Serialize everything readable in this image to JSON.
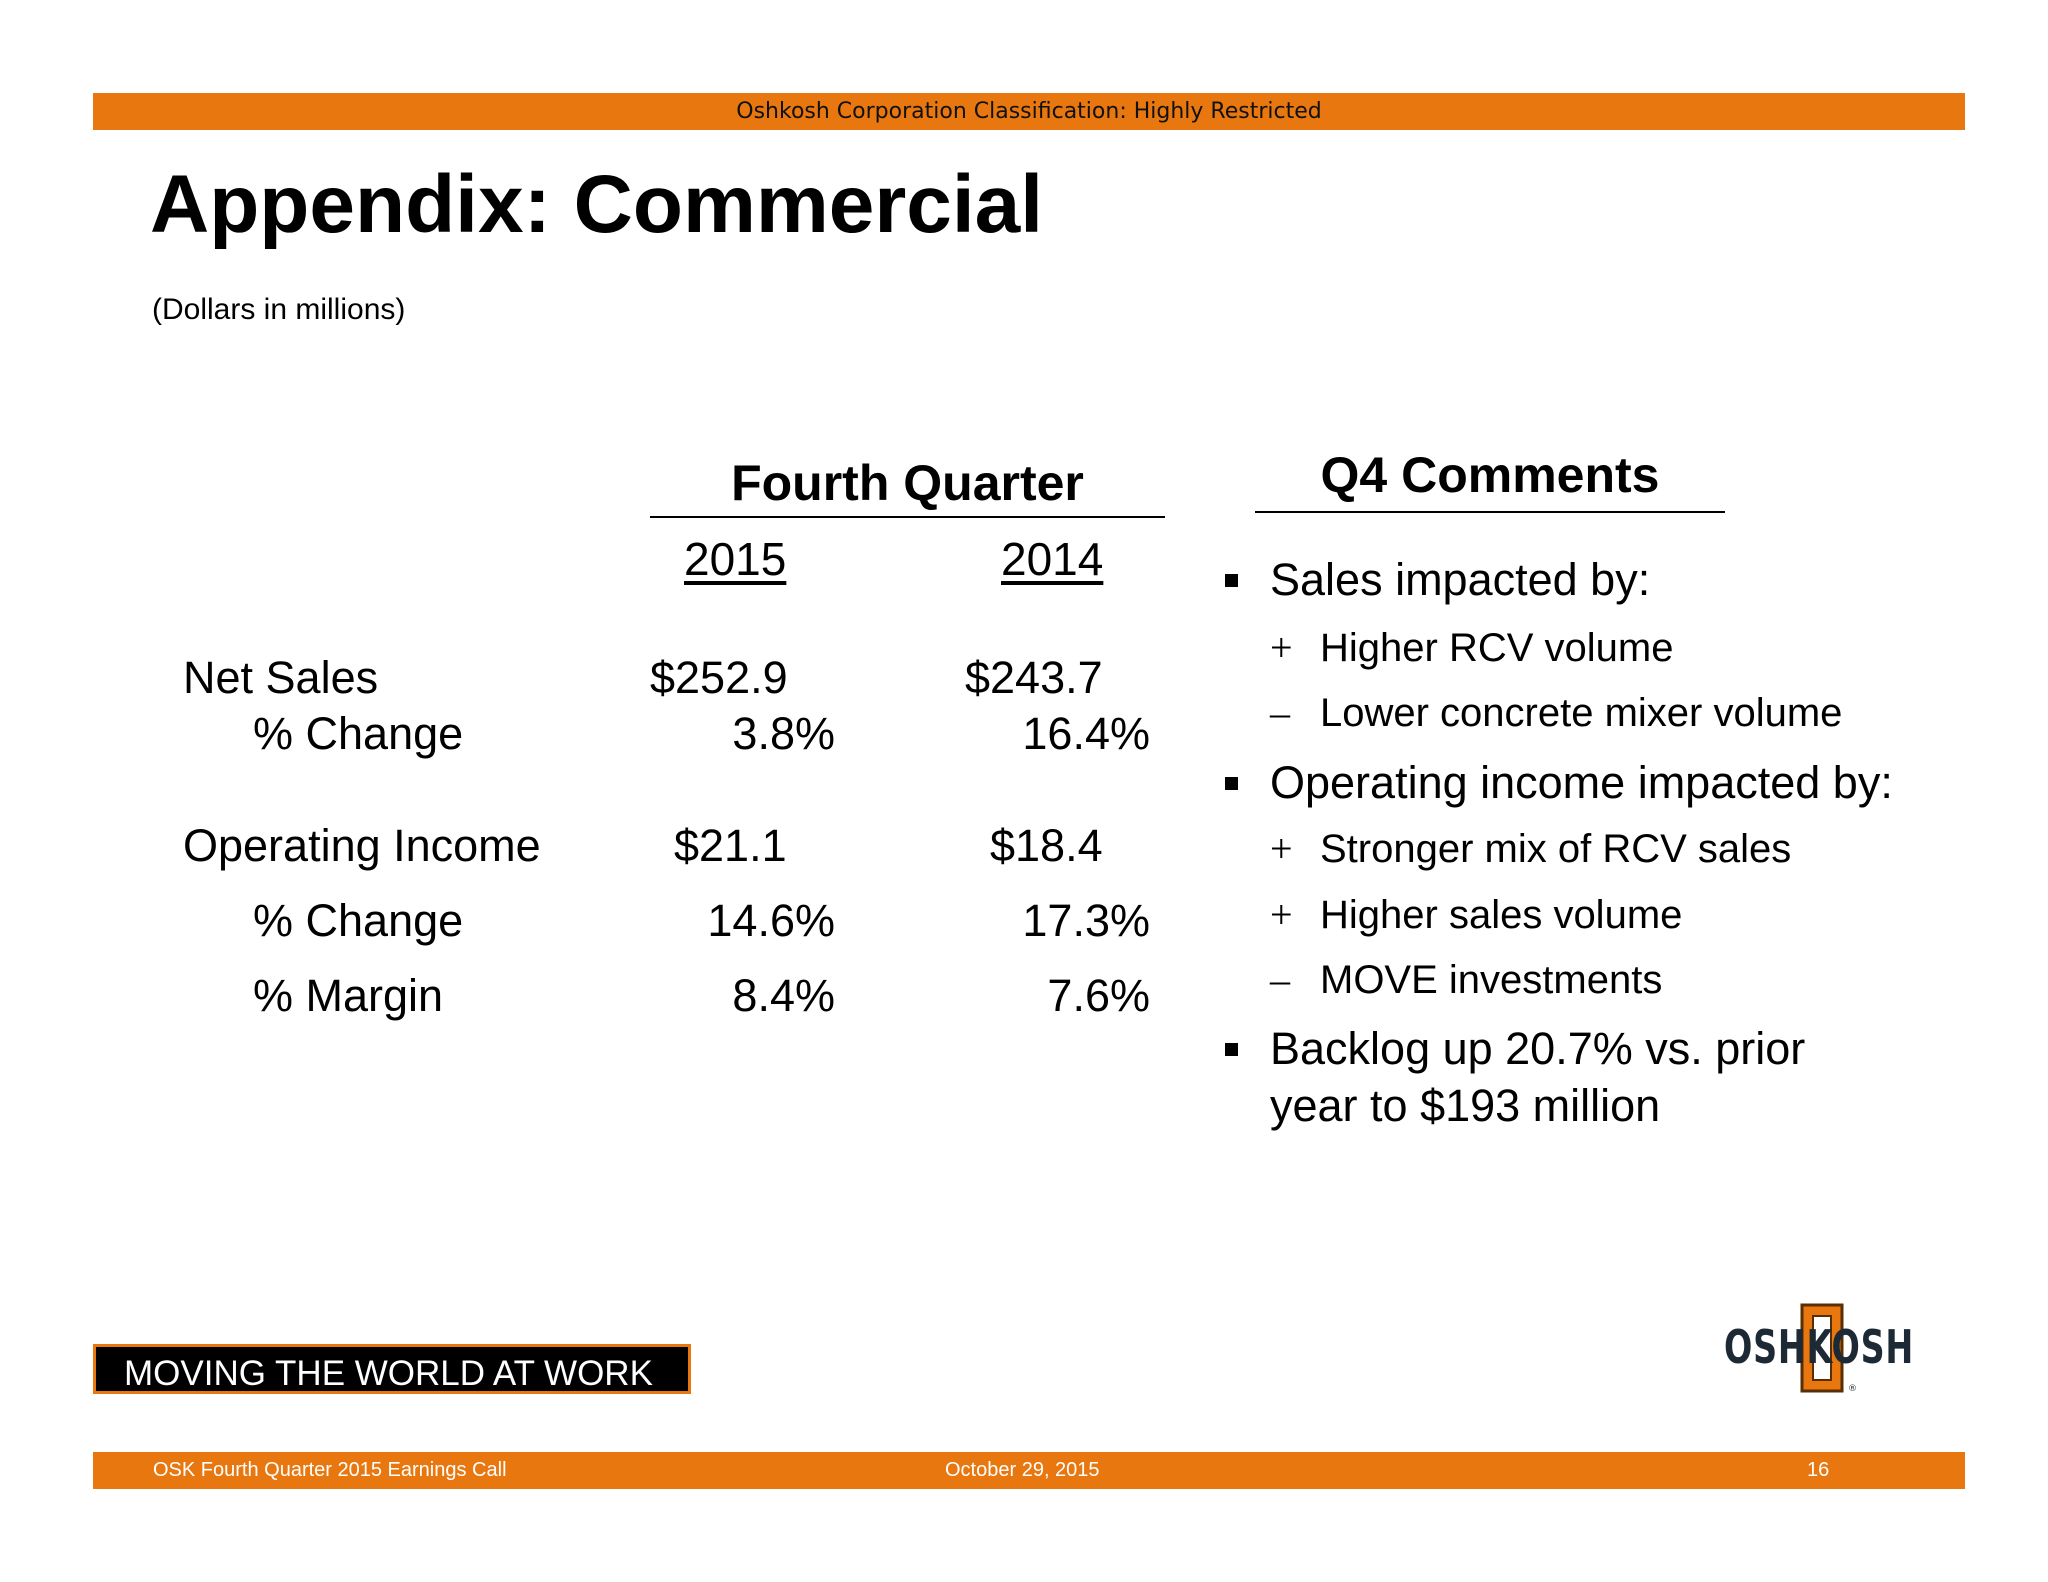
{
  "header": {
    "classification": "Oshkosh Corporation Classification: Highly Restricted"
  },
  "title": "Appendix: Commercial",
  "subtitle": "(Dollars in millions)",
  "table": {
    "heading": "Fourth Quarter",
    "years": [
      "2015",
      "2014"
    ],
    "rows": [
      {
        "label": "Net Sales",
        "v2015": "$252.9",
        "v2014": "$243.7"
      },
      {
        "label": "% Change",
        "v2015": "3.8%",
        "v2014": "16.4%"
      },
      {
        "label": "Operating Income",
        "v2015": "$21.1",
        "v2014": "$18.4"
      },
      {
        "label": "% Change",
        "v2015": "14.6%",
        "v2014": "17.3%"
      },
      {
        "label": "% Margin",
        "v2015": "8.4%",
        "v2014": "7.6%"
      }
    ]
  },
  "comments": {
    "heading": "Q4 Comments",
    "bullets": [
      {
        "text": "Sales impacted by:",
        "subs": [
          {
            "sym": "+",
            "text": "Higher RCV volume"
          },
          {
            "sym": "–",
            "text": "Lower concrete mixer volume"
          }
        ]
      },
      {
        "text": "Operating income impacted by:",
        "subs": [
          {
            "sym": "+",
            "text": "Stronger mix of RCV sales"
          },
          {
            "sym": "+",
            "text": "Higher sales volume"
          },
          {
            "sym": "–",
            "text": "MOVE investments"
          }
        ]
      },
      {
        "text_line1": "Backlog up 20.7% vs. prior",
        "text_line2": "year to $193 million"
      }
    ]
  },
  "tagline": "MOVING THE WORLD AT WORK",
  "logo": {
    "text": "OSHKOSH",
    "icon": "oshkosh-logo",
    "accent": "#e8770f",
    "dark": "#1d2a36"
  },
  "footer": {
    "left": "OSK Fourth Quarter 2015 Earnings Call",
    "center": "October 29, 2015",
    "page": "16"
  },
  "colors": {
    "accent": "#e8770f"
  }
}
